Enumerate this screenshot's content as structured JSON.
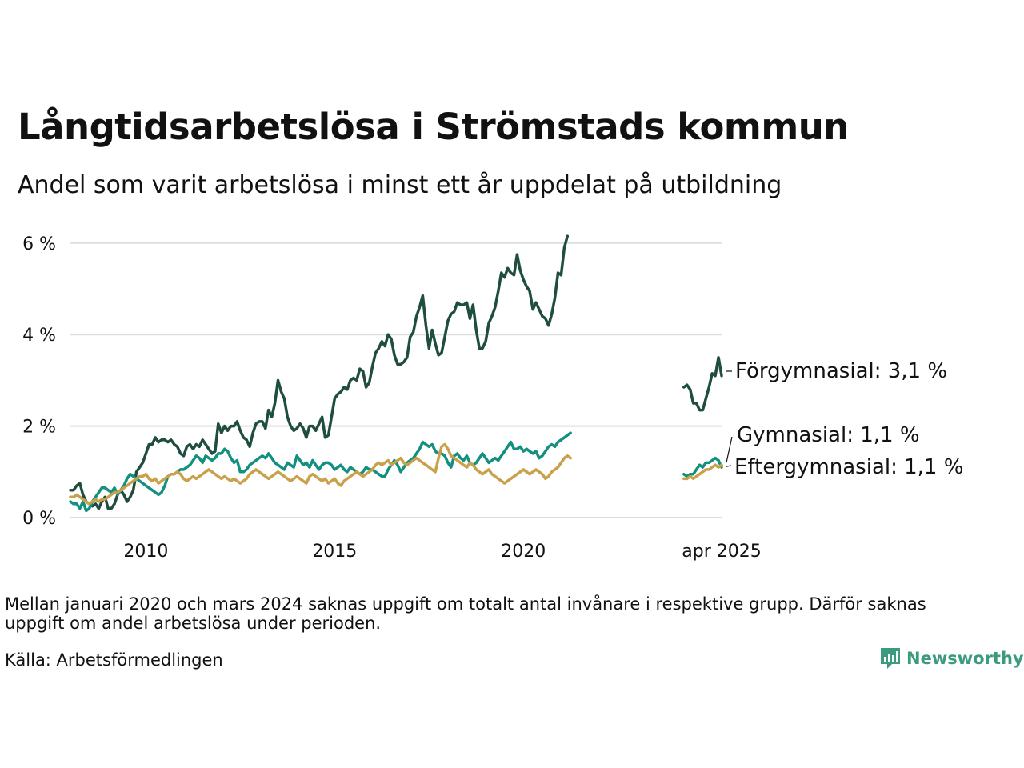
{
  "title": "Långtidsarbetslösa i Strömstads kommun",
  "subtitle": "Andel som varit arbetslösa i minst ett år uppdelat på utbildning",
  "note": "Mellan januari 2020 och mars 2024 saknas uppgift om totalt antal invånare i respektive grupp. Därför saknas uppgift om andel arbetslösa under perioden.",
  "source": "Källa: Arbetsförmedlingen",
  "brand": "Newsworthy",
  "colors": {
    "forgymnasial": "#1f4d40",
    "gymnasial": "#13907f",
    "eftergymnasial": "#c9a14a",
    "grid": "#dddddd",
    "brand": "#3c9a7f"
  },
  "chart_data": {
    "type": "line",
    "title": "Långtidsarbetslösa i Strömstads kommun",
    "subtitle": "Andel som varit arbetslösa i minst ett år uppdelat på utbildning",
    "xlabel": "",
    "ylabel": "",
    "ylim": [
      0,
      6.1
    ],
    "y_ticks": [
      "0 %",
      "2 %",
      "4 %",
      "6 %"
    ],
    "x_ticks": [
      "2010",
      "2015",
      "2020",
      "apr 2025"
    ],
    "grid": true,
    "legend": "end-labels",
    "series": [
      {
        "name": "Förgymnasial",
        "end_label": "Förgymnasial: 3,1 %",
        "color": "#1f4d40",
        "segments": [
          {
            "start": "2008-01",
            "values": [
              0.6,
              0.6,
              0.7,
              0.75,
              0.5,
              0.35,
              0.3,
              0.25,
              0.3,
              0.2,
              0.35,
              0.45,
              0.2,
              0.2,
              0.3,
              0.5,
              0.6,
              0.5,
              0.35,
              0.45,
              0.6,
              1.0,
              1.1,
              1.2,
              1.4,
              1.6,
              1.6,
              1.75,
              1.65,
              1.7,
              1.7,
              1.65,
              1.7,
              1.6,
              1.55,
              1.4,
              1.35,
              1.55,
              1.6,
              1.5,
              1.6,
              1.55,
              1.7,
              1.6,
              1.5,
              1.4,
              1.45,
              2.05,
              1.85,
              2.0,
              1.9,
              2.0,
              2.0,
              2.1,
              1.9,
              1.75,
              1.7,
              1.55,
              1.85,
              2.05,
              2.1,
              2.1,
              1.95,
              2.35,
              2.2,
              2.5,
              3.0,
              2.75,
              2.6,
              2.2,
              2.0,
              1.9,
              1.95,
              2.05,
              1.95,
              1.75,
              2.0,
              2.0,
              1.9,
              2.05,
              2.2,
              1.75,
              1.8,
              2.2,
              2.6,
              2.7,
              2.75,
              2.85,
              2.8,
              3.0,
              3.05,
              3.0,
              3.25,
              3.2,
              2.85,
              2.95,
              3.3,
              3.6,
              3.7,
              3.85,
              3.75,
              4.0,
              3.9,
              3.55,
              3.35,
              3.35,
              3.4,
              3.5,
              3.95,
              4.05,
              4.4,
              4.6,
              4.85,
              4.2,
              3.7,
              4.1,
              3.8,
              3.55,
              3.6,
              3.95,
              4.3,
              4.45,
              4.5,
              4.7,
              4.65,
              4.65,
              4.7,
              4.35,
              4.65,
              4.1,
              3.7,
              3.7,
              3.85,
              4.25,
              4.4,
              4.6,
              4.95,
              5.35,
              5.25,
              5.45,
              5.35,
              5.3,
              5.75,
              5.4,
              5.2,
              5.05,
              4.95,
              4.55,
              4.7,
              4.55,
              4.4,
              4.35,
              4.2,
              4.45,
              4.8,
              5.35,
              5.3,
              5.9,
              6.15
            ]
          },
          {
            "start": "2024-04",
            "values": [
              2.85,
              2.9,
              2.8,
              2.5,
              2.5,
              2.35,
              2.35,
              2.6,
              2.85,
              3.15,
              3.1,
              3.5,
              3.1
            ]
          }
        ]
      },
      {
        "name": "Gymnasial",
        "end_label": "Gymnasial: 1,1 %",
        "color": "#13907f",
        "segments": [
          {
            "start": "2008-01",
            "values": [
              0.35,
              0.3,
              0.3,
              0.2,
              0.35,
              0.15,
              0.2,
              0.35,
              0.45,
              0.55,
              0.65,
              0.65,
              0.6,
              0.55,
              0.65,
              0.5,
              0.6,
              0.7,
              0.85,
              0.95,
              0.9,
              0.85,
              0.8,
              0.75,
              0.7,
              0.65,
              0.6,
              0.55,
              0.5,
              0.55,
              0.7,
              0.9,
              0.95,
              0.95,
              1.0,
              1.05,
              1.05,
              1.1,
              1.15,
              1.25,
              1.35,
              1.3,
              1.2,
              1.35,
              1.3,
              1.25,
              1.3,
              1.4,
              1.4,
              1.5,
              1.45,
              1.3,
              1.2,
              1.25,
              1.0,
              1.0,
              1.05,
              1.15,
              1.2,
              1.25,
              1.3,
              1.35,
              1.3,
              1.4,
              1.3,
              1.2,
              1.15,
              1.1,
              1.05,
              1.2,
              1.15,
              1.1,
              1.35,
              1.25,
              1.15,
              1.2,
              1.1,
              1.25,
              1.15,
              1.05,
              1.15,
              1.2,
              1.2,
              1.15,
              1.05,
              1.1,
              1.15,
              1.05,
              1.0,
              1.1,
              1.05,
              1.0,
              0.95,
              1.0,
              1.1,
              1.05,
              1.05,
              1.0,
              0.95,
              0.9,
              0.9,
              1.05,
              1.15,
              1.25,
              1.15,
              1.0,
              1.1,
              1.2,
              1.25,
              1.3,
              1.4,
              1.5,
              1.65,
              1.6,
              1.55,
              1.6,
              1.45,
              1.4,
              1.4,
              1.35,
              1.2,
              1.1,
              1.35,
              1.4,
              1.3,
              1.25,
              1.35,
              1.2,
              1.15,
              1.2,
              1.3,
              1.4,
              1.3,
              1.2,
              1.25,
              1.3,
              1.25,
              1.35,
              1.45,
              1.55,
              1.65,
              1.5,
              1.5,
              1.55,
              1.45,
              1.5,
              1.45,
              1.4,
              1.45,
              1.3,
              1.35,
              1.45,
              1.55,
              1.6,
              1.55,
              1.65,
              1.7,
              1.75,
              1.8,
              1.85
            ]
          },
          {
            "start": "2024-04",
            "values": [
              0.95,
              0.9,
              0.95,
              0.95,
              1.05,
              1.15,
              1.1,
              1.2,
              1.2,
              1.25,
              1.3,
              1.25,
              1.1
            ]
          }
        ]
      },
      {
        "name": "Eftergymnasial",
        "end_label": "Eftergymnasial: 1,1 %",
        "color": "#c9a14a",
        "segments": [
          {
            "start": "2008-01",
            "values": [
              0.45,
              0.45,
              0.5,
              0.45,
              0.4,
              0.35,
              0.3,
              0.35,
              0.4,
              0.35,
              0.4,
              0.4,
              0.45,
              0.5,
              0.55,
              0.55,
              0.6,
              0.65,
              0.7,
              0.75,
              0.8,
              0.85,
              0.9,
              0.9,
              0.95,
              0.85,
              0.8,
              0.85,
              0.75,
              0.8,
              0.85,
              0.9,
              0.95,
              0.95,
              1.0,
              0.95,
              0.85,
              0.8,
              0.85,
              0.9,
              0.85,
              0.9,
              0.95,
              1.0,
              1.05,
              1.0,
              0.95,
              0.9,
              0.85,
              0.9,
              0.85,
              0.8,
              0.85,
              0.8,
              0.75,
              0.8,
              0.85,
              0.95,
              1.0,
              1.05,
              1.0,
              0.95,
              0.9,
              0.85,
              0.9,
              0.95,
              1.0,
              0.95,
              0.9,
              0.85,
              0.8,
              0.85,
              0.9,
              0.85,
              0.8,
              0.75,
              0.9,
              0.95,
              0.9,
              0.85,
              0.8,
              0.85,
              0.75,
              0.8,
              0.85,
              0.75,
              0.7,
              0.8,
              0.85,
              0.9,
              0.95,
              1.0,
              0.95,
              0.9,
              0.95,
              1.0,
              1.05,
              1.15,
              1.2,
              1.15,
              1.2,
              1.25,
              1.15,
              1.2,
              1.25,
              1.3,
              1.2,
              1.15,
              1.2,
              1.25,
              1.3,
              1.25,
              1.2,
              1.15,
              1.1,
              1.05,
              1.0,
              1.3,
              1.55,
              1.6,
              1.5,
              1.35,
              1.3,
              1.25,
              1.2,
              1.15,
              1.1,
              1.2,
              1.15,
              1.05,
              1.0,
              0.95,
              1.0,
              1.05,
              0.95,
              0.9,
              0.85,
              0.8,
              0.75,
              0.8,
              0.85,
              0.9,
              0.95,
              1.0,
              1.05,
              1.0,
              0.95,
              1.0,
              1.05,
              1.0,
              0.95,
              0.85,
              0.9,
              1.0,
              1.05,
              1.1,
              1.2,
              1.3,
              1.35,
              1.3
            ]
          },
          {
            "start": "2024-04",
            "values": [
              0.85,
              0.85,
              0.9,
              0.85,
              0.9,
              0.95,
              1.0,
              1.05,
              1.05,
              1.1,
              1.15,
              1.1,
              1.15
            ]
          }
        ]
      }
    ]
  }
}
